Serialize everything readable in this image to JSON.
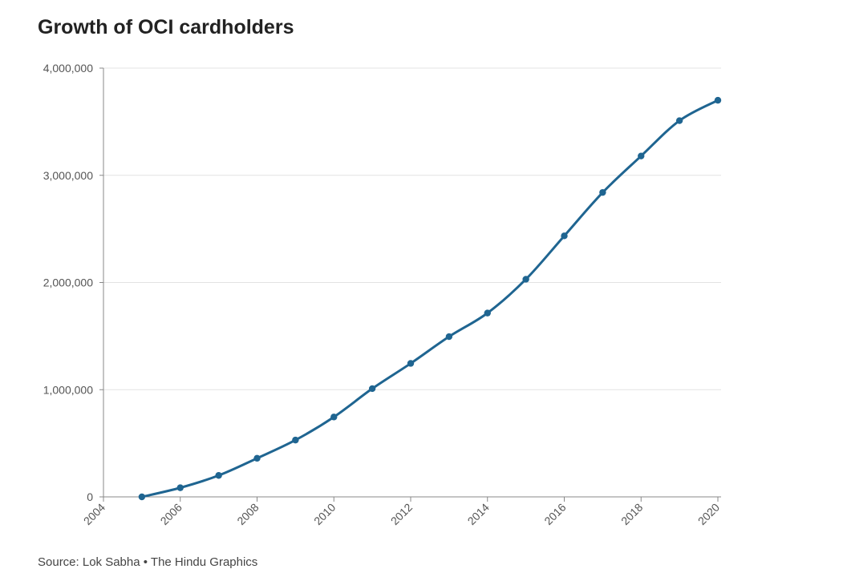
{
  "chart_data": {
    "type": "line",
    "title": "Growth of OCI cardholders",
    "xlabel": "",
    "ylabel": "",
    "x": [
      2005,
      2006,
      2007,
      2008,
      2009,
      2010,
      2011,
      2012,
      2013,
      2014,
      2015,
      2016,
      2017,
      2018,
      2019,
      2020
    ],
    "series": [
      {
        "values": [
          0,
          85000,
          200000,
          360000,
          530000,
          745000,
          1010000,
          1245000,
          1495000,
          1715000,
          2030000,
          2435000,
          2840000,
          3180000,
          3510000,
          3700000
        ]
      }
    ],
    "xlim": [
      2004,
      2020
    ],
    "ylim": [
      0,
      4000000
    ],
    "x_ticks": [
      "2004",
      "2006",
      "2008",
      "2010",
      "2012",
      "2014",
      "2016",
      "2018",
      "2020"
    ],
    "y_ticks": [
      "0",
      "1,000,000",
      "2,000,000",
      "3,000,000",
      "4,000,000"
    ],
    "grid": true,
    "line_color": "#1f6591",
    "source": "Source: Lok Sabha • The Hindu Graphics"
  }
}
